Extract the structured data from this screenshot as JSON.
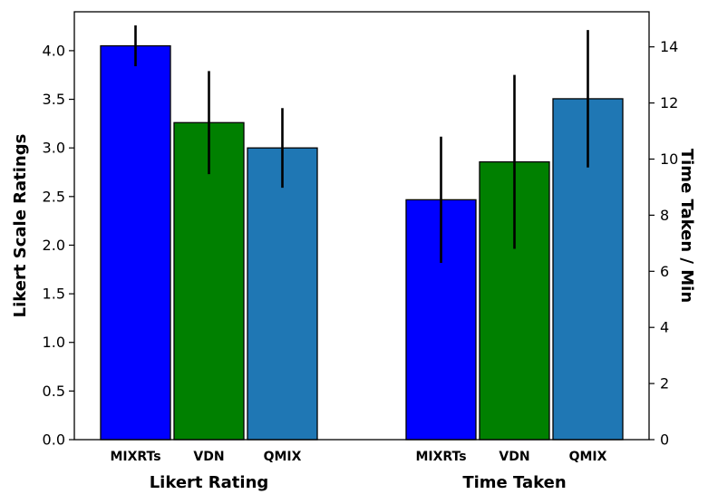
{
  "chart_data": {
    "type": "bar",
    "groups": [
      {
        "label": "Likert Rating",
        "axis": "left",
        "categories": [
          "MIXRTs",
          "VDN",
          "QMIX"
        ],
        "values": [
          4.05,
          3.26,
          3.0
        ],
        "errors": [
          0.21,
          0.53,
          0.41
        ]
      },
      {
        "label": "Time Taken",
        "axis": "right",
        "categories": [
          "MIXRTs",
          "VDN",
          "QMIX"
        ],
        "values": [
          8.55,
          9.9,
          12.15
        ],
        "errors": [
          2.25,
          3.1,
          2.45
        ]
      }
    ],
    "left_axis": {
      "label": "Likert Scale Ratings",
      "ylim": [
        0,
        4.4
      ],
      "ticks": [
        0.0,
        0.5,
        1.0,
        1.5,
        2.0,
        2.5,
        3.0,
        3.5,
        4.0
      ],
      "tick_labels": [
        "0.0",
        "0.5",
        "1.0",
        "1.5",
        "2.0",
        "2.5",
        "3.0",
        "3.5",
        "4.0"
      ]
    },
    "right_axis": {
      "label": "Time Taken / Min",
      "ylim": [
        0,
        15.25
      ],
      "ticks": [
        0,
        2,
        4,
        6,
        8,
        10,
        12,
        14
      ],
      "tick_labels": [
        "0",
        "2",
        "4",
        "6",
        "8",
        "10",
        "12",
        "14"
      ]
    },
    "colors": [
      "#0000ff",
      "#008000",
      "#1f77b4"
    ],
    "grid": false,
    "legend": "none"
  }
}
